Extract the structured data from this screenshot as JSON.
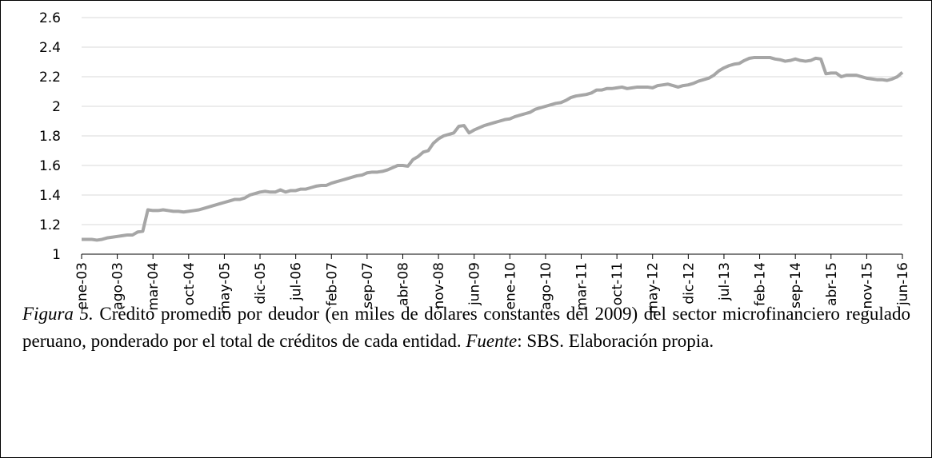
{
  "chart_data": {
    "type": "line",
    "categories": [
      "ene-03",
      null,
      null,
      null,
      null,
      null,
      null,
      "ago-03",
      null,
      null,
      null,
      null,
      null,
      null,
      "mar-04",
      null,
      null,
      null,
      null,
      null,
      null,
      "oct-04",
      null,
      null,
      null,
      null,
      null,
      null,
      "may-05",
      null,
      null,
      null,
      null,
      null,
      null,
      "dic-05",
      null,
      null,
      null,
      null,
      null,
      null,
      "jul-06",
      null,
      null,
      null,
      null,
      null,
      null,
      "feb-07",
      null,
      null,
      null,
      null,
      null,
      null,
      "sep-07",
      null,
      null,
      null,
      null,
      null,
      null,
      "abr-08",
      null,
      null,
      null,
      null,
      null,
      null,
      "nov-08",
      null,
      null,
      null,
      null,
      null,
      null,
      "jun-09",
      null,
      null,
      null,
      null,
      null,
      null,
      "ene-10",
      null,
      null,
      null,
      null,
      null,
      null,
      "ago-10",
      null,
      null,
      null,
      null,
      null,
      null,
      "mar-11",
      null,
      null,
      null,
      null,
      null,
      null,
      "oct-11",
      null,
      null,
      null,
      null,
      null,
      null,
      "may-12",
      null,
      null,
      null,
      null,
      null,
      null,
      "dic-12",
      null,
      null,
      null,
      null,
      null,
      null,
      "jul-13",
      null,
      null,
      null,
      null,
      null,
      null,
      "feb-14",
      null,
      null,
      null,
      null,
      null,
      null,
      "sep-14",
      null,
      null,
      null,
      null,
      null,
      null,
      "abr-15",
      null,
      null,
      null,
      null,
      null,
      null,
      "nov-15",
      null,
      null,
      null,
      null,
      null,
      null,
      "jun-16"
    ],
    "series": [
      {
        "color": "#a6a6a6",
        "values": [
          1.1,
          1.1,
          1.1,
          1.095,
          1.1,
          1.11,
          1.115,
          1.12,
          1.125,
          1.13,
          1.13,
          1.15,
          1.155,
          1.3,
          1.295,
          1.295,
          1.3,
          1.295,
          1.29,
          1.29,
          1.285,
          1.29,
          1.295,
          1.3,
          1.31,
          1.32,
          1.33,
          1.34,
          1.35,
          1.36,
          1.37,
          1.37,
          1.38,
          1.4,
          1.41,
          1.42,
          1.425,
          1.42,
          1.42,
          1.435,
          1.42,
          1.43,
          1.43,
          1.44,
          1.44,
          1.45,
          1.46,
          1.465,
          1.465,
          1.48,
          1.49,
          1.5,
          1.51,
          1.52,
          1.53,
          1.535,
          1.55,
          1.555,
          1.555,
          1.56,
          1.57,
          1.585,
          1.6,
          1.6,
          1.595,
          1.64,
          1.66,
          1.69,
          1.7,
          1.75,
          1.78,
          1.8,
          1.81,
          1.82,
          1.865,
          1.87,
          1.82,
          1.84,
          1.855,
          1.87,
          1.88,
          1.89,
          1.9,
          1.91,
          1.915,
          1.93,
          1.94,
          1.95,
          1.96,
          1.98,
          1.99,
          2.0,
          2.01,
          2.02,
          2.025,
          2.04,
          2.06,
          2.07,
          2.075,
          2.08,
          2.09,
          2.11,
          2.11,
          2.12,
          2.12,
          2.125,
          2.13,
          2.12,
          2.125,
          2.13,
          2.13,
          2.13,
          2.125,
          2.14,
          2.145,
          2.15,
          2.14,
          2.13,
          2.14,
          2.145,
          2.155,
          2.17,
          2.18,
          2.19,
          2.21,
          2.24,
          2.26,
          2.275,
          2.285,
          2.29,
          2.31,
          2.325,
          2.33,
          2.33,
          2.33,
          2.33,
          2.32,
          2.315,
          2.305,
          2.31,
          2.32,
          2.31,
          2.305,
          2.31,
          2.325,
          2.32,
          2.22,
          2.225,
          2.225,
          2.2,
          2.21,
          2.21,
          2.21,
          2.2,
          2.19,
          2.185,
          2.18,
          2.18,
          2.175,
          2.185,
          2.2,
          2.23
        ]
      }
    ],
    "ylim": [
      1,
      2.6
    ],
    "yticks": [
      1,
      1.2,
      1.4,
      1.6,
      1.8,
      2,
      2.2,
      2.4,
      2.6
    ],
    "grid": true
  },
  "caption": {
    "label": "Figura 5.",
    "text": " Crédito promedio por deudor (en miles de dólares constantes del 2009) del sector microfinanciero regulado peruano, ponderado por el total de créditos de cada entidad. ",
    "source_label": "Fuente",
    "source_text": ": SBS. Elaboración propia."
  }
}
